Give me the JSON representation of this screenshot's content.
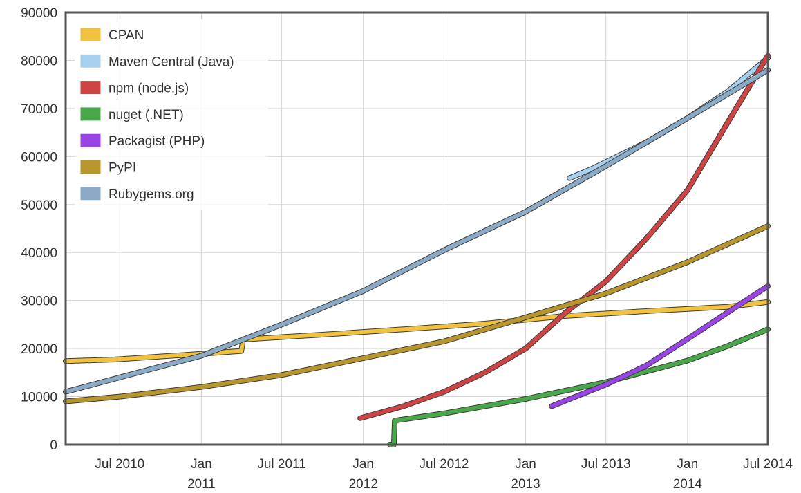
{
  "chart_data": {
    "type": "line",
    "title": "",
    "xlabel": "",
    "ylabel": "",
    "xlim": [
      "2010-03-01",
      "2014-07-01"
    ],
    "ylim": [
      0,
      90000
    ],
    "grid": true,
    "legend_position": "top-left",
    "y_ticks": [
      "0",
      "10000",
      "20000",
      "30000",
      "40000",
      "50000",
      "60000",
      "70000",
      "80000",
      "90000"
    ],
    "x_ticks": [
      {
        "date": "2010-07-01",
        "line1": "Jul 2010",
        "line2": ""
      },
      {
        "date": "2011-01-01",
        "line1": "Jan",
        "line2": "2011"
      },
      {
        "date": "2011-07-01",
        "line1": "Jul 2011",
        "line2": ""
      },
      {
        "date": "2012-01-01",
        "line1": "Jan",
        "line2": "2012"
      },
      {
        "date": "2012-07-01",
        "line1": "Jul 2012",
        "line2": ""
      },
      {
        "date": "2013-01-01",
        "line1": "Jan",
        "line2": "2013"
      },
      {
        "date": "2013-07-01",
        "line1": "Jul 2013",
        "line2": ""
      },
      {
        "date": "2014-01-01",
        "line1": "Jan",
        "line2": "2014"
      },
      {
        "date": "2014-07-01",
        "line1": "Jul 2014",
        "line2": ""
      }
    ],
    "series": [
      {
        "name": "CPAN",
        "color": "#f0c240",
        "points": [
          [
            "2010-03-01",
            17400
          ],
          [
            "2010-06-15",
            17700
          ],
          [
            "2010-12-01",
            18700
          ],
          [
            "2011-04-01",
            19500
          ],
          [
            "2011-04-05",
            21900
          ],
          [
            "2011-10-01",
            22900
          ],
          [
            "2012-04-01",
            24000
          ],
          [
            "2012-10-01",
            25200
          ],
          [
            "2013-04-01",
            26800
          ],
          [
            "2013-10-01",
            27800
          ],
          [
            "2014-04-01",
            28700
          ],
          [
            "2014-07-01",
            29700
          ]
        ]
      },
      {
        "name": "Maven Central (Java)",
        "color": "#a8d1f0",
        "points": [
          [
            "2013-04-10",
            55500
          ],
          [
            "2013-06-01",
            57500
          ],
          [
            "2013-10-01",
            63000
          ],
          [
            "2014-01-01",
            68000
          ],
          [
            "2014-04-01",
            73500
          ],
          [
            "2014-07-01",
            80500
          ]
        ]
      },
      {
        "name": "npm (node.js)",
        "color": "#cc4444",
        "points": [
          [
            "2011-12-25",
            5500
          ],
          [
            "2012-04-01",
            8000
          ],
          [
            "2012-07-01",
            11000
          ],
          [
            "2012-10-01",
            15000
          ],
          [
            "2013-01-01",
            20000
          ],
          [
            "2013-04-01",
            27500
          ],
          [
            "2013-07-01",
            34000
          ],
          [
            "2013-10-01",
            43000
          ],
          [
            "2014-01-01",
            53000
          ],
          [
            "2014-04-01",
            67000
          ],
          [
            "2014-07-01",
            81000
          ]
        ]
      },
      {
        "name": "nuget (.NET)",
        "color": "#4aa84a",
        "points": [
          [
            "2012-03-01",
            0
          ],
          [
            "2012-03-10",
            0
          ],
          [
            "2012-03-12",
            5000
          ],
          [
            "2012-07-01",
            6500
          ],
          [
            "2013-01-01",
            9500
          ],
          [
            "2013-07-01",
            13000
          ],
          [
            "2014-01-01",
            17500
          ],
          [
            "2014-04-01",
            20500
          ],
          [
            "2014-07-01",
            24000
          ]
        ]
      },
      {
        "name": "Packagist (PHP)",
        "color": "#9a44e6",
        "points": [
          [
            "2013-03-01",
            8000
          ],
          [
            "2013-07-01",
            12500
          ],
          [
            "2013-10-01",
            16500
          ],
          [
            "2014-01-01",
            22000
          ],
          [
            "2014-04-01",
            27500
          ],
          [
            "2014-07-01",
            33000
          ]
        ]
      },
      {
        "name": "PyPI",
        "color": "#b8962e",
        "points": [
          [
            "2010-03-01",
            9000
          ],
          [
            "2010-07-01",
            10000
          ],
          [
            "2011-01-01",
            12000
          ],
          [
            "2011-07-01",
            14500
          ],
          [
            "2012-01-01",
            18000
          ],
          [
            "2012-07-01",
            21500
          ],
          [
            "2013-01-01",
            26500
          ],
          [
            "2013-07-01",
            31500
          ],
          [
            "2014-01-01",
            38000
          ],
          [
            "2014-07-01",
            45500
          ]
        ]
      },
      {
        "name": "Rubygems.org",
        "color": "#8aaac6",
        "points": [
          [
            "2010-03-01",
            11000
          ],
          [
            "2010-07-01",
            14000
          ],
          [
            "2011-01-01",
            18500
          ],
          [
            "2011-07-01",
            25000
          ],
          [
            "2012-01-01",
            32000
          ],
          [
            "2012-07-01",
            40500
          ],
          [
            "2013-01-01",
            48500
          ],
          [
            "2013-07-01",
            58000
          ],
          [
            "2014-01-01",
            68000
          ],
          [
            "2014-07-01",
            78000
          ]
        ]
      }
    ]
  }
}
